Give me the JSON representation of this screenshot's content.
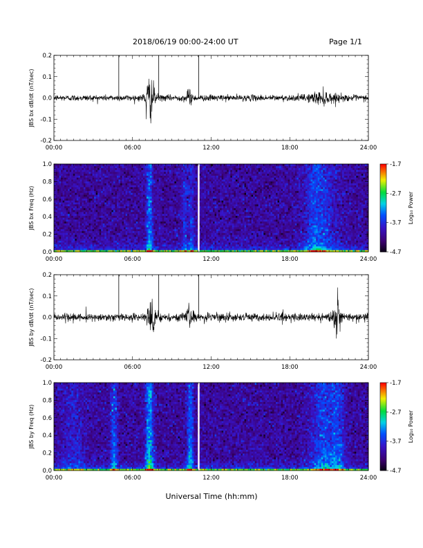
{
  "header": {
    "title": "2018/06/19  00:00-24:00 UT",
    "page": "Page 1/1"
  },
  "xaxis": {
    "title": "Universal Time (hh:mm)",
    "ticks": [
      "00:00",
      "06:00",
      "12:00",
      "18:00",
      "24:00"
    ],
    "range_hours": [
      0,
      24
    ]
  },
  "chart_data": [
    {
      "type": "line",
      "ylabel": "JBS bx dB/dt (nT/sec)",
      "ylim": [
        -0.2,
        0.2
      ],
      "yticks": [
        "0.2",
        "0.1",
        "0.0",
        "-0.1",
        "-0.2"
      ],
      "yticks_values": [
        0.2,
        0.1,
        0.0,
        -0.1,
        -0.2
      ],
      "markers_hours": [
        4.95,
        8.0,
        11.05
      ],
      "noise_amplitude": 0.008,
      "events": [
        {
          "x": 7.35,
          "amp": 0.05,
          "width": 0.35
        },
        {
          "x": 10.3,
          "amp": 0.015,
          "width": 0.25
        },
        {
          "x": 20.5,
          "amp": 0.012,
          "width": 1.0
        }
      ],
      "peaks": [
        {
          "x": 7.25,
          "y": 0.09
        },
        {
          "x": 7.05,
          "y": -0.1
        },
        {
          "x": 10.4,
          "y": 0.04
        }
      ]
    },
    {
      "type": "heatmap",
      "ylabel": "JBS bx Freq (Hz)",
      "ylim": [
        0,
        1.0
      ],
      "yticks": [
        "1.0",
        "0.8",
        "0.6",
        "0.4",
        "0.2",
        "0.0"
      ],
      "yticks_values": [
        1.0,
        0.8,
        0.6,
        0.4,
        0.2,
        0.0
      ],
      "colorbar": {
        "label": "Log₁₀ Power",
        "ticks": [
          "-1.7",
          "-2.7",
          "-3.7",
          "-4.7"
        ],
        "ticks_values": [
          -1.7,
          -2.7,
          -3.7,
          -4.7
        ],
        "range": [
          -4.7,
          -1.7
        ]
      },
      "gap_hours": 11.05,
      "events": [
        {
          "x": 7.3,
          "amp": 0.35,
          "width": 0.25
        },
        {
          "x": 10.0,
          "amp": 0.2,
          "width": 0.2
        },
        {
          "x": 10.5,
          "amp": 0.2,
          "width": 0.2
        },
        {
          "x": 20.5,
          "amp": 0.2,
          "width": 1.2
        },
        {
          "x": 19.8,
          "amp": 0.12,
          "width": 0.6
        }
      ]
    },
    {
      "type": "line",
      "ylabel": "JBS by dB/dt (nT/sec)",
      "ylim": [
        -0.2,
        0.2
      ],
      "yticks": [
        "0.2",
        "0.1",
        "0.0",
        "-0.1",
        "-0.2"
      ],
      "yticks_values": [
        0.2,
        0.1,
        0.0,
        -0.1,
        -0.2
      ],
      "markers_hours": [
        4.95,
        8.0,
        11.05
      ],
      "noise_amplitude": 0.01,
      "events": [
        {
          "x": 7.4,
          "amp": 0.035,
          "width": 0.4
        },
        {
          "x": 10.4,
          "amp": 0.02,
          "width": 0.3
        },
        {
          "x": 17.5,
          "amp": 0.01,
          "width": 0.3
        },
        {
          "x": 21.6,
          "amp": 0.045,
          "width": 0.35
        }
      ],
      "peaks": [
        {
          "x": 7.35,
          "y": 0.07
        },
        {
          "x": 7.6,
          "y": -0.07
        },
        {
          "x": 21.65,
          "y": 0.14
        },
        {
          "x": 21.55,
          "y": -0.1
        },
        {
          "x": 2.45,
          "y": 0.05
        }
      ]
    },
    {
      "type": "heatmap",
      "ylabel": "JBS by Freq (Hz)",
      "ylim": [
        0,
        1.0
      ],
      "yticks": [
        "1.0",
        "0.8",
        "0.6",
        "0.4",
        "0.2",
        "0.0"
      ],
      "yticks_values": [
        1.0,
        0.8,
        0.6,
        0.4,
        0.2,
        0.0
      ],
      "colorbar": {
        "label": "Log₁₀ Power",
        "ticks": [
          "-1.7",
          "-2.7",
          "-3.7",
          "-4.7"
        ],
        "ticks_values": [
          -1.7,
          -2.7,
          -3.7,
          -4.7
        ],
        "range": [
          -4.7,
          -1.7
        ]
      },
      "gap_hours": 11.05,
      "events": [
        {
          "x": 4.6,
          "amp": 0.3,
          "width": 0.25
        },
        {
          "x": 7.3,
          "amp": 0.45,
          "width": 0.3
        },
        {
          "x": 10.4,
          "amp": 0.35,
          "width": 0.25
        },
        {
          "x": 20.6,
          "amp": 0.25,
          "width": 1.0
        },
        {
          "x": 21.7,
          "amp": 0.2,
          "width": 0.5
        },
        {
          "x": 1.5,
          "amp": 0.12,
          "width": 1.0
        }
      ]
    }
  ]
}
